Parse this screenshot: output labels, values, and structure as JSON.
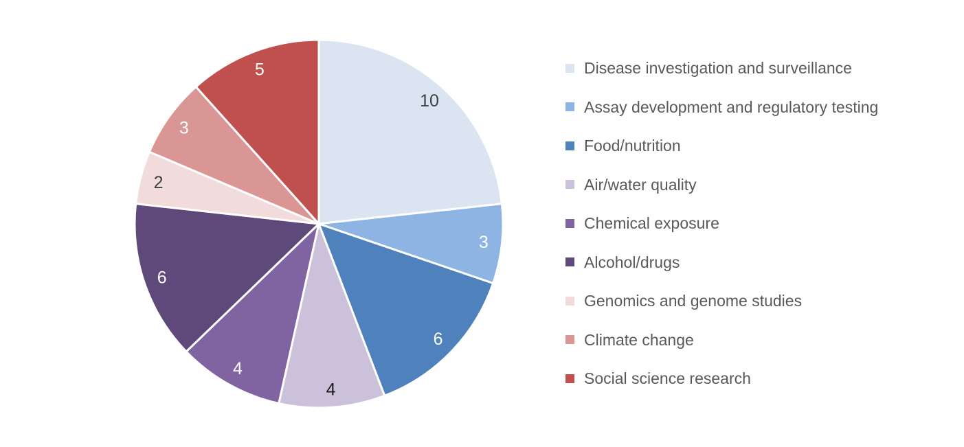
{
  "chart_data": {
    "type": "pie",
    "categories": [
      "Disease investigation and surveillance",
      "Assay development and regulatory testing",
      "Food/nutrition",
      "Air/water quality",
      "Chemical exposure",
      "Alcohol/drugs",
      "Genomics and genome studies",
      "Climate change",
      "Social science research"
    ],
    "values": [
      10,
      3,
      6,
      4,
      4,
      6,
      2,
      3,
      5
    ],
    "total": 43,
    "colors": [
      "#dbe5f1",
      "#8db4e2",
      "#4f81bd",
      "#ccc1da",
      "#8064a2",
      "#5f497a",
      "#f2dcdb",
      "#d99694",
      "#c0504d"
    ],
    "data_label_colors": [
      "#404040",
      "#ffffff",
      "#ffffff",
      "#1a1a1a",
      "#ffffff",
      "#ffffff",
      "#404040",
      "#ffffff",
      "#ffffff"
    ],
    "start_angle_deg": 0,
    "direction": "clockwise",
    "legend_position": "right",
    "legend_text_color": "#595959",
    "slice_border_color": "#ffffff",
    "background": "#ffffff",
    "title": ""
  }
}
